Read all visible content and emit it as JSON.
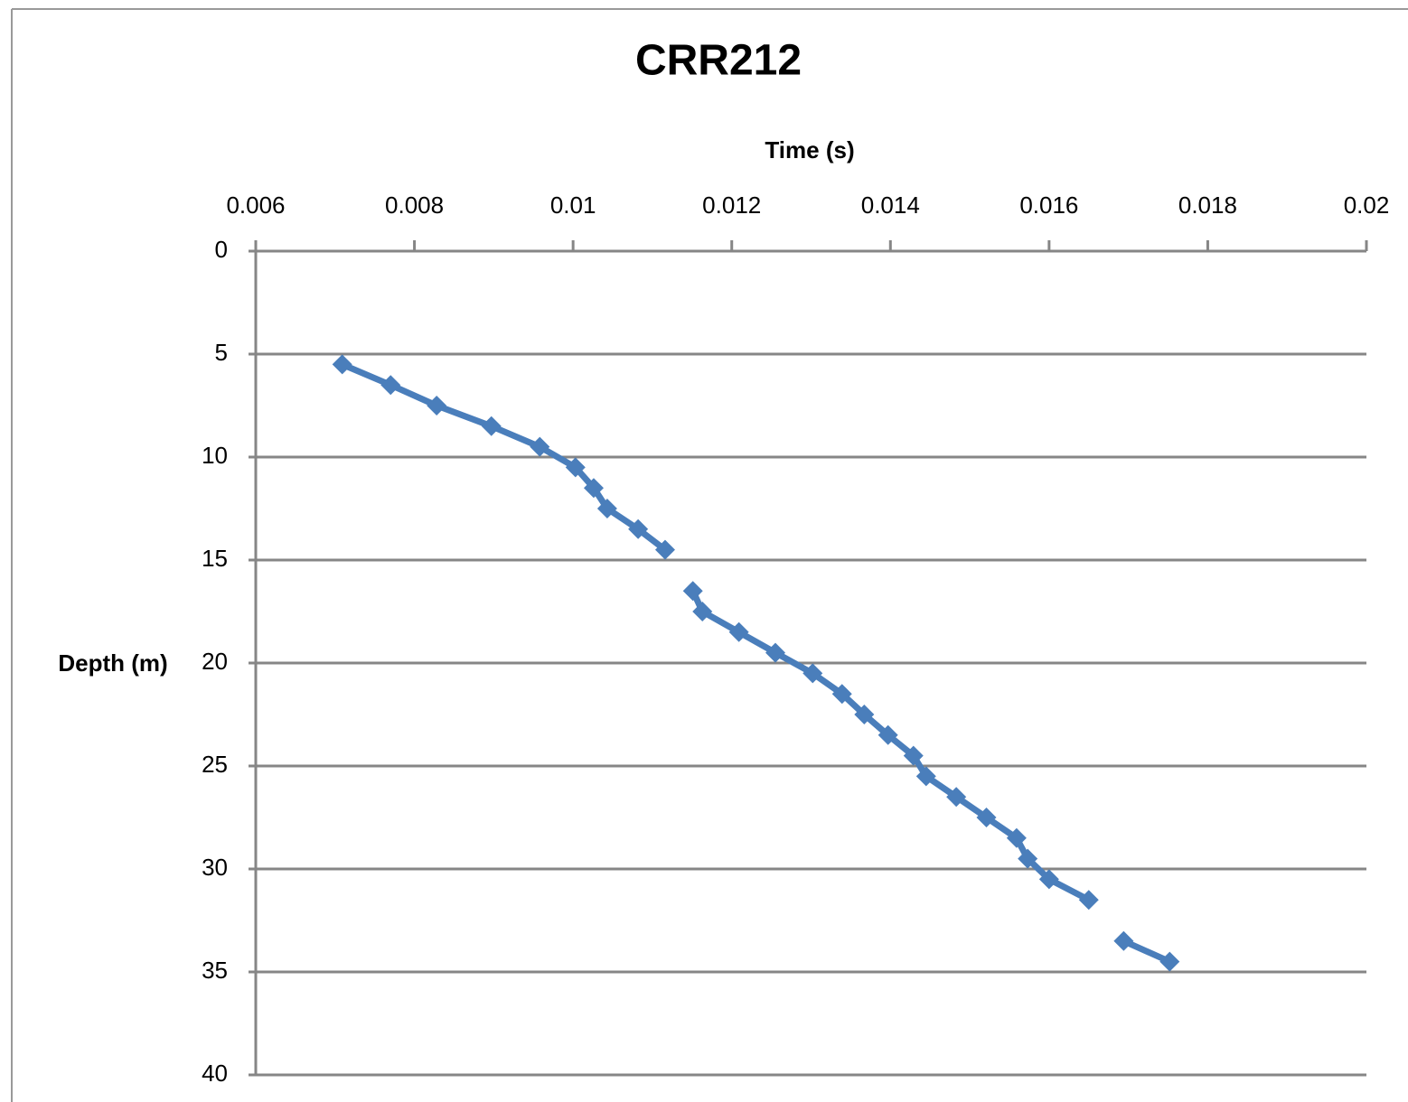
{
  "chart_data": {
    "type": "line",
    "title": "CRR212",
    "x_label": "Time (s)",
    "y_label": "Depth (m)",
    "x": [
      0.00709,
      0.0077,
      0.00828,
      0.00897,
      0.00958,
      0.01003,
      0.01026,
      0.01043,
      0.01082,
      0.01116,
      null,
      0.01151,
      0.01163,
      0.01209,
      0.01255,
      0.01302,
      0.01339,
      0.01367,
      0.01397,
      0.01429,
      0.01445,
      0.01483,
      0.01521,
      0.01559,
      0.01573,
      0.016,
      0.0165,
      null,
      0.01694,
      0.01752
    ],
    "series": [
      {
        "color": "#4a7ebb",
        "values": [
          5.5,
          6.5,
          7.5,
          8.5,
          9.5,
          10.5,
          11.5,
          12.5,
          13.5,
          14.5,
          null,
          16.5,
          17.5,
          18.5,
          19.5,
          20.5,
          21.5,
          22.5,
          23.5,
          24.5,
          25.5,
          26.5,
          27.5,
          28.5,
          29.5,
          30.5,
          31.5,
          null,
          33.5,
          34.5
        ]
      }
    ],
    "xlim": [
      0.006,
      0.02
    ],
    "xticks": [
      0.006,
      0.008,
      0.01,
      0.012,
      0.014,
      0.016,
      0.018,
      0.02
    ],
    "ylim": [
      0,
      40
    ],
    "yticks": [
      0,
      5,
      10,
      15,
      20,
      25,
      30,
      35,
      40
    ],
    "y_reversed": true,
    "x_axis_position": "top",
    "grid": true
  }
}
